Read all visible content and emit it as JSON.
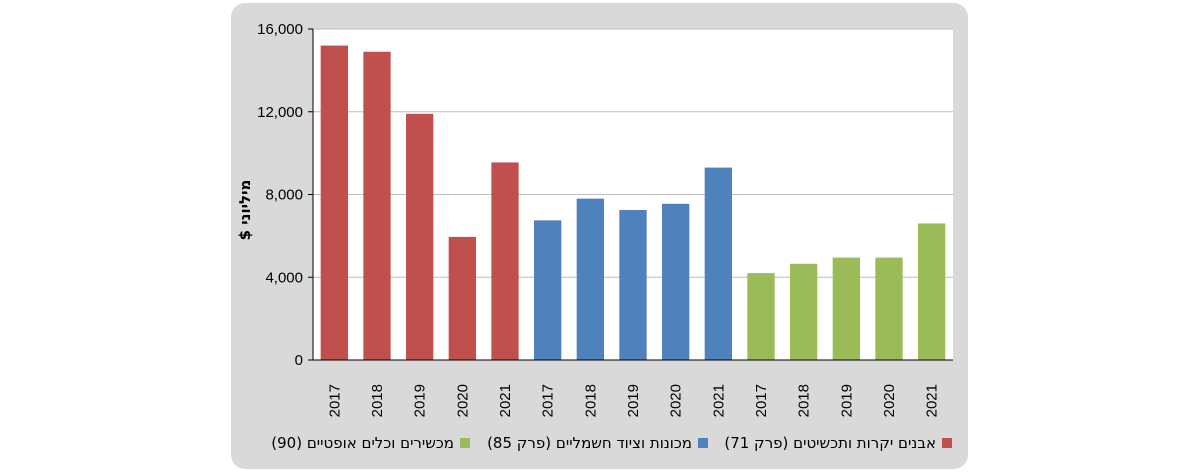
{
  "chart_data": {
    "type": "bar",
    "ylabel": "מיליוני $",
    "ylim": [
      0,
      16000
    ],
    "yticks": [
      0,
      4000,
      8000,
      12000,
      16000
    ],
    "ytick_labels": [
      "0",
      "4,000",
      "8,000",
      "12,000",
      "16,000"
    ],
    "grid": true,
    "legend_position": "bottom",
    "series": [
      {
        "name": "אבנים יקרות ותכשיטים (פרק 71)",
        "color": "#c0504d",
        "categories": [
          "2017",
          "2018",
          "2019",
          "2020",
          "2021"
        ],
        "values": [
          15200,
          14900,
          11900,
          5950,
          9550
        ]
      },
      {
        "name": "מכונות וציוד חשמליים (פרק 85)",
        "color": "#4f81bd",
        "categories": [
          "2017",
          "2018",
          "2019",
          "2020",
          "2021"
        ],
        "values": [
          6750,
          7800,
          7250,
          7550,
          9300
        ]
      },
      {
        "name": "מכשירים וכלים אופטיים (90)",
        "color": "#9bbb59",
        "categories": [
          "2017",
          "2018",
          "2019",
          "2020",
          "2021"
        ],
        "values": [
          4200,
          4650,
          4950,
          4950,
          6600
        ]
      }
    ]
  }
}
